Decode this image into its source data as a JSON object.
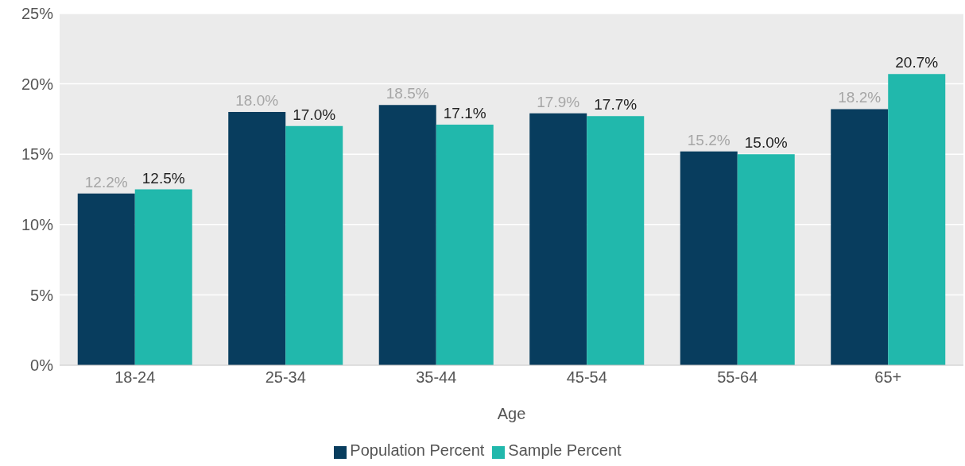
{
  "chart_data": {
    "type": "bar",
    "xlabel": "Age",
    "categories": [
      "18-24",
      "25-34",
      "35-44",
      "45-54",
      "55-64",
      "65+"
    ],
    "series": [
      {
        "name": "Population Percent",
        "color": "#083d5e",
        "values": [
          12.2,
          18.0,
          18.5,
          17.9,
          15.2,
          18.2
        ],
        "value_labels": [
          "12.2%",
          "18.0%",
          "18.5%",
          "17.9%",
          "15.2%",
          "18.2%"
        ]
      },
      {
        "name": "Sample Percent",
        "color": "#21b8ac",
        "values": [
          12.5,
          17.0,
          17.1,
          17.7,
          15.0,
          20.7
        ],
        "value_labels": [
          "12.5%",
          "17.0%",
          "17.1%",
          "17.7%",
          "15.0%",
          "20.7%"
        ]
      }
    ],
    "ylim": [
      0,
      25
    ],
    "yticks": [
      {
        "value": 0,
        "label": "0%"
      },
      {
        "value": 5,
        "label": "5%"
      },
      {
        "value": 10,
        "label": "10%"
      },
      {
        "value": 15,
        "label": "15%"
      },
      {
        "value": 20,
        "label": "20%"
      },
      {
        "value": 25,
        "label": "25%"
      }
    ],
    "grid": "y",
    "legend": "bottom"
  }
}
